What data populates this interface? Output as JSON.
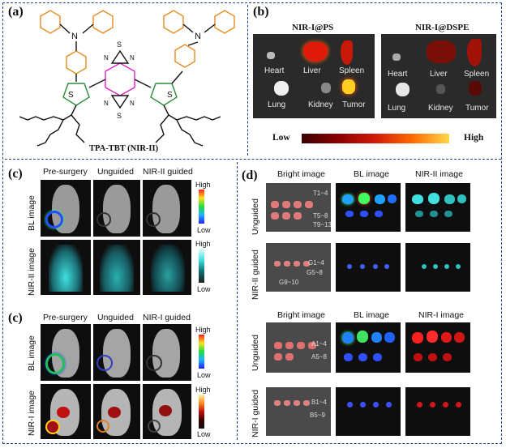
{
  "panels": {
    "a": {
      "label": "(a)",
      "caption": "TPA-TBT (NIR-II)"
    },
    "b": {
      "label": "(b)",
      "left_title": "NIR-I@PS",
      "right_title": "NIR-I@DSPE",
      "organs_top": [
        "Heart",
        "Liver",
        "Spleen"
      ],
      "organs_bottom": [
        "Lung",
        "Kidney",
        "Tumor"
      ],
      "bar_low": "Low",
      "bar_high": "High"
    },
    "c": {
      "label_top": "(c)",
      "label_bottom": "(c)",
      "top_cols": [
        "Pre-surgery",
        "Unguided",
        "NIR-II guided"
      ],
      "bottom_cols": [
        "Pre-surgery",
        "Unguided",
        "NIR-I guided"
      ],
      "rows_top": [
        "BL image",
        "NIR-II image"
      ],
      "rows_bottom": [
        "BL image",
        "NIR-I image"
      ],
      "high": "High",
      "low": "Low"
    },
    "d": {
      "label": "(d)",
      "top_cols": [
        "Bright image",
        "BL image",
        "NIR-II image"
      ],
      "bottom_cols": [
        "Bright image",
        "BL image",
        "NIR-I image"
      ],
      "rows": [
        "Unguided",
        "NIR-II guided",
        "Unguided",
        "NIR-I guided"
      ],
      "groups_r1": [
        "T1~4",
        "T5~8",
        "T9~13"
      ],
      "groups_r2": [
        "G1~4",
        "G5~8",
        "G9~10"
      ],
      "groups_r3": [
        "A1~4",
        "A5~8"
      ],
      "groups_r4": [
        "B1~4",
        "B5~9"
      ]
    }
  },
  "colors": {
    "frame": "#1d3f8f",
    "thiophene": "#2e8b3a",
    "phenyl": "#e58a1f",
    "core": "#e020c8"
  }
}
